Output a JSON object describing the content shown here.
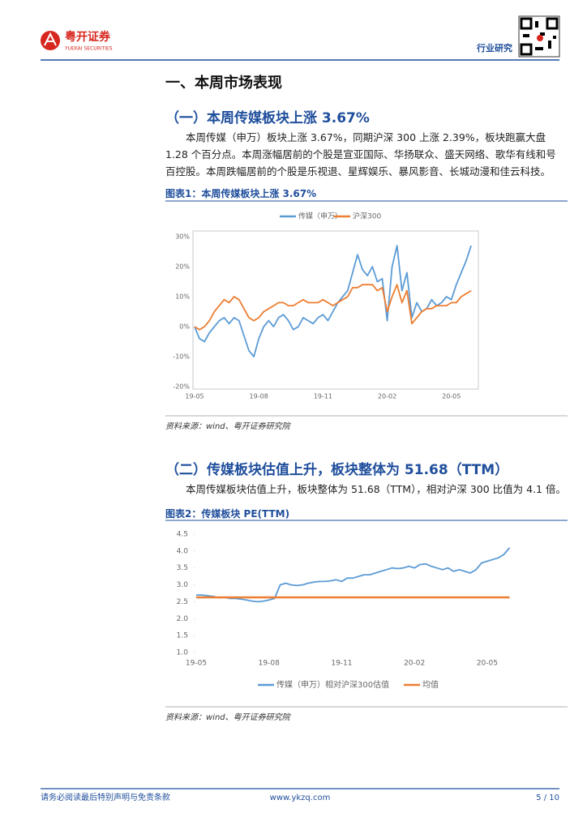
{
  "header": {
    "brand": "粤开证券",
    "brand_en": "YUEKAI SECURITIES",
    "tag": "行业研究"
  },
  "section_title": "一、本周市场表现",
  "sections": [
    {
      "title": "（一）本周传媒板块上涨 3.67%",
      "body": "本周传媒（申万）板块上涨 3.67%，同期沪深 300 上涨 2.39%，板块跑赢大盘 1.28 个百分点。本周涨幅居前的个股是宣亚国际、华扬联众、盛天网络、歌华有线和号百控股。本周跌幅居前的个股是乐视退、星辉娱乐、暴风影音、长城动漫和佳云科技。"
    },
    {
      "title": "（二）传媒板块估值上升，板块整体为 51.68（TTM）",
      "body": "本周传媒板块估值上升，板块整体为 51.68（TTM），相对沪深 300 比值为 4.1 倍。"
    }
  ],
  "chart_data": [
    {
      "type": "line",
      "title": "图表1：本周传媒板块上涨 3.67%",
      "source": "资料来源：wind、粤开证券研究院",
      "categories": [
        "19-05",
        null,
        null,
        null,
        null,
        null,
        null,
        null,
        null,
        null,
        null,
        null,
        null,
        "19-08",
        null,
        null,
        null,
        null,
        null,
        null,
        null,
        null,
        null,
        null,
        null,
        null,
        "19-11",
        null,
        null,
        null,
        null,
        null,
        null,
        null,
        null,
        null,
        null,
        null,
        null,
        "20-02",
        null,
        null,
        null,
        null,
        null,
        null,
        null,
        null,
        null,
        null,
        null,
        null,
        "20-05",
        null,
        null,
        null,
        null
      ],
      "ylim": [
        -20,
        30
      ],
      "yticks": [
        {
          "value": -20,
          "label": "-20%"
        },
        {
          "value": -10,
          "label": "-10%"
        },
        {
          "value": 0,
          "label": "0%"
        },
        {
          "value": 10,
          "label": "10%"
        },
        {
          "value": 20,
          "label": "20%"
        },
        {
          "value": 30,
          "label": "30%"
        }
      ],
      "grid": false,
      "legend": "top",
      "series": [
        {
          "name": "传媒（申万）",
          "color": "#5b9bd5",
          "values": [
            0,
            -4,
            -5,
            -2,
            0,
            2,
            3,
            1,
            3,
            2,
            -3,
            -8,
            -10,
            -4,
            0,
            2,
            0,
            3,
            4,
            2,
            -1,
            0,
            3,
            2,
            1,
            3,
            4,
            2,
            5,
            8,
            10,
            12,
            18,
            24,
            19,
            17,
            20,
            15,
            16,
            2,
            20,
            27,
            12,
            18,
            3,
            8,
            5,
            6,
            9,
            7,
            8,
            10,
            9,
            14,
            18,
            22,
            27
          ]
        },
        {
          "name": "沪深300",
          "color": "#ed7d31",
          "values": [
            0,
            -1,
            0,
            2,
            5,
            7,
            9,
            8,
            10,
            9,
            6,
            3,
            2,
            3,
            5,
            6,
            7,
            8,
            8,
            7,
            7,
            8,
            9,
            8,
            8,
            8,
            9,
            8,
            7,
            8,
            9,
            10,
            13,
            13,
            14,
            14,
            14,
            12,
            13,
            5,
            10,
            14,
            8,
            12,
            1,
            3,
            5,
            6,
            6,
            7,
            7,
            7,
            8,
            8,
            10,
            11,
            12
          ]
        }
      ]
    },
    {
      "type": "line",
      "title": "图表2：传媒板块 PE(TTM)",
      "source": "资料来源：wind、粤开证券研究院",
      "categories": [
        "19-05",
        null,
        null,
        null,
        null,
        null,
        null,
        null,
        null,
        null,
        null,
        null,
        null,
        "19-08",
        null,
        null,
        null,
        null,
        null,
        null,
        null,
        null,
        null,
        null,
        null,
        null,
        "19-11",
        null,
        null,
        null,
        null,
        null,
        null,
        null,
        null,
        null,
        null,
        null,
        null,
        "20-02",
        null,
        null,
        null,
        null,
        null,
        null,
        null,
        null,
        null,
        null,
        null,
        null,
        "20-05",
        null,
        null,
        null,
        null
      ],
      "ylim": [
        1,
        4.5
      ],
      "yticks": [
        {
          "value": 1,
          "label": "1.0"
        },
        1.5,
        {
          "value": 2,
          "label": "2.0"
        },
        2.5,
        {
          "value": 3,
          "label": "3.0"
        },
        3.5,
        {
          "value": 4,
          "label": "4.0"
        },
        4.5
      ],
      "grid": false,
      "legend": "bottom",
      "series": [
        {
          "name": "传媒（申万）相对沪深300估值",
          "color": "#5b9bd5",
          "values": [
            2.7,
            2.7,
            2.68,
            2.66,
            2.62,
            2.63,
            2.6,
            2.6,
            2.58,
            2.55,
            2.52,
            2.5,
            2.52,
            2.55,
            2.6,
            3.0,
            3.05,
            3.0,
            2.98,
            3.0,
            3.05,
            3.08,
            3.1,
            3.1,
            3.12,
            3.15,
            3.1,
            3.2,
            3.2,
            3.25,
            3.3,
            3.3,
            3.35,
            3.4,
            3.45,
            3.5,
            3.48,
            3.5,
            3.55,
            3.5,
            3.6,
            3.62,
            3.55,
            3.5,
            3.45,
            3.5,
            3.4,
            3.45,
            3.4,
            3.35,
            3.45,
            3.65,
            3.7,
            3.75,
            3.8,
            3.9,
            4.1
          ]
        },
        {
          "name": "均值",
          "color": "#ed7d31",
          "values": [
            2.63,
            2.63,
            2.63,
            2.63,
            2.63,
            2.63,
            2.63,
            2.63,
            2.63,
            2.63,
            2.63,
            2.63,
            2.63,
            2.63,
            2.63,
            2.63,
            2.63,
            2.63,
            2.63,
            2.63,
            2.63,
            2.63,
            2.63,
            2.63,
            2.63,
            2.63,
            2.63,
            2.63,
            2.63,
            2.63,
            2.63,
            2.63,
            2.63,
            2.63,
            2.63,
            2.63,
            2.63,
            2.63,
            2.63,
            2.63,
            2.63,
            2.63,
            2.63,
            2.63,
            2.63,
            2.63,
            2.63,
            2.63,
            2.63,
            2.63,
            2.63,
            2.63,
            2.63,
            2.63,
            2.63,
            2.63,
            2.63
          ]
        }
      ]
    }
  ],
  "footer": {
    "disclaimer": "请务必阅读最后特别声明与免责条款",
    "website": "www.ykzq.com",
    "page": "5 / 10"
  }
}
